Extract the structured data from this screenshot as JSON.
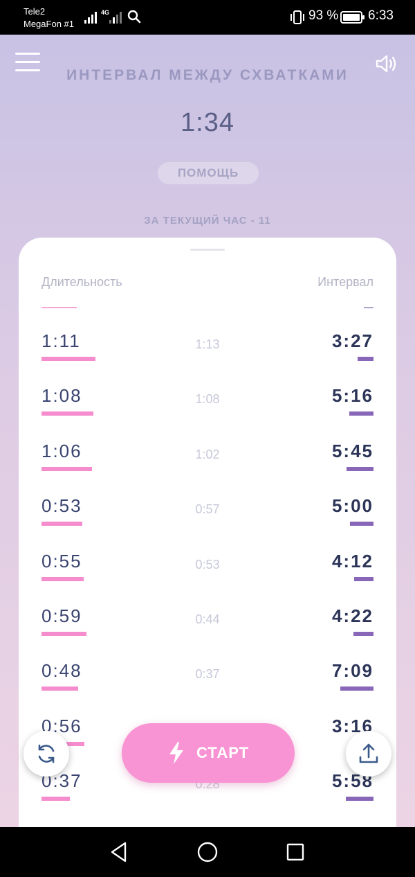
{
  "status_bar": {
    "carrier_1": "Tele2",
    "carrier_2": "MegaFon #1",
    "network": "4G",
    "battery": "93 %",
    "time": "6:33"
  },
  "header": {
    "menu_icon": "hamburger-menu-icon",
    "sound_icon": "speaker-volume-icon",
    "title": "ИНТЕРВАЛ МЕЖДУ СХВАТКАМИ",
    "interval_value": "1:34",
    "help_label": "ПОМОЩЬ",
    "current_hour": "ЗА ТЕКУЩИЙ ЧАС - 11"
  },
  "table": {
    "duration_header": "Длительность",
    "interval_header": "Интервал",
    "rows": [
      {
        "duration": "1:11",
        "time": "1:13",
        "interval": "3:27",
        "duration_sec": 71,
        "interval_sec": 207
      },
      {
        "duration": "1:08",
        "time": "1:08",
        "interval": "5:16",
        "duration_sec": 68,
        "interval_sec": 316
      },
      {
        "duration": "1:06",
        "time": "1:02",
        "interval": "5:45",
        "duration_sec": 66,
        "interval_sec": 345
      },
      {
        "duration": "0:53",
        "time": "0:57",
        "interval": "5:00",
        "duration_sec": 53,
        "interval_sec": 300
      },
      {
        "duration": "0:55",
        "time": "0:53",
        "interval": "4:12",
        "duration_sec": 55,
        "interval_sec": 252
      },
      {
        "duration": "0:59",
        "time": "0:44",
        "interval": "4:22",
        "duration_sec": 59,
        "interval_sec": 262
      },
      {
        "duration": "0:48",
        "time": "0:37",
        "interval": "7:09",
        "duration_sec": 48,
        "interval_sec": 429
      },
      {
        "duration": "0:56",
        "time": "",
        "interval": "3:16",
        "duration_sec": 56,
        "interval_sec": 196
      },
      {
        "duration": "0:37",
        "time": "0:28",
        "interval": "5:58",
        "duration_sec": 37,
        "interval_sec": 358
      }
    ]
  },
  "controls": {
    "reset_icon": "refresh-icon",
    "share_icon": "share-upload-icon",
    "start_icon": "lightning-icon",
    "start_label": "СТАРТ"
  },
  "colors": {
    "duration_bar": "#f58ccd",
    "interval_bar": "#8866b8",
    "start_button": "#f894d3"
  }
}
